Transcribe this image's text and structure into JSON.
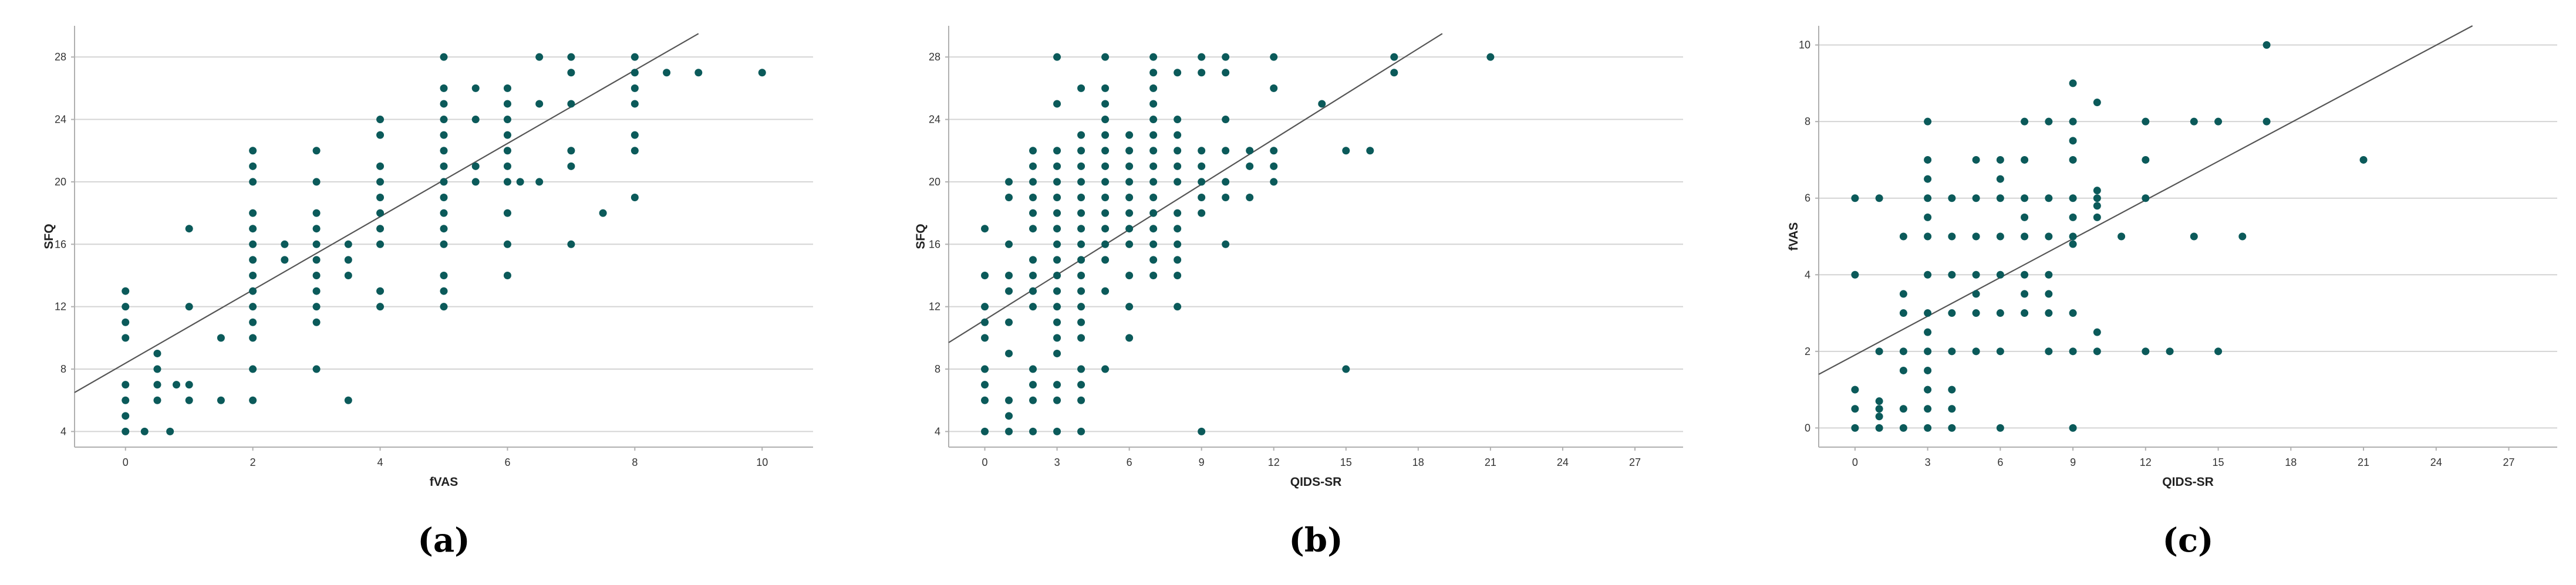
{
  "colors": {
    "point": "#0b5a5a",
    "grid": "#d4d4d4",
    "axis": "#b0b0b0",
    "fit": "#555555"
  },
  "chart_data": [
    {
      "type": "scatter",
      "panel_label": "(a)",
      "xlabel": "fVAS",
      "ylabel": "SFQ",
      "xlim": [
        -0.8,
        10.8
      ],
      "ylim": [
        3,
        30
      ],
      "xticks": [
        0,
        2,
        4,
        6,
        8,
        10
      ],
      "yticks": [
        4,
        8,
        12,
        16,
        20,
        24,
        28
      ],
      "grid": "horizontal",
      "fit_line": {
        "x1": -0.8,
        "y1": 6.5,
        "x2": 9.0,
        "y2": 29.5
      },
      "points": [
        [
          0,
          4
        ],
        [
          0,
          5
        ],
        [
          0,
          6
        ],
        [
          0,
          7
        ],
        [
          0,
          10
        ],
        [
          0,
          11
        ],
        [
          0,
          12
        ],
        [
          0,
          13
        ],
        [
          0.3,
          4
        ],
        [
          0.5,
          6
        ],
        [
          0.5,
          7
        ],
        [
          0.5,
          8
        ],
        [
          0.5,
          9
        ],
        [
          0.7,
          4
        ],
        [
          0.8,
          7
        ],
        [
          1,
          6
        ],
        [
          1,
          7
        ],
        [
          1,
          12
        ],
        [
          1,
          17
        ],
        [
          1.5,
          6
        ],
        [
          1.5,
          10
        ],
        [
          2,
          6
        ],
        [
          2,
          8
        ],
        [
          2,
          10
        ],
        [
          2,
          11
        ],
        [
          2,
          12
        ],
        [
          2,
          13
        ],
        [
          2,
          14
        ],
        [
          2,
          15
        ],
        [
          2,
          16
        ],
        [
          2,
          17
        ],
        [
          2,
          18
        ],
        [
          2,
          20
        ],
        [
          2,
          21
        ],
        [
          2,
          22
        ],
        [
          2.5,
          15
        ],
        [
          2.5,
          16
        ],
        [
          3,
          8
        ],
        [
          3,
          11
        ],
        [
          3,
          12
        ],
        [
          3,
          13
        ],
        [
          3,
          14
        ],
        [
          3,
          15
        ],
        [
          3,
          16
        ],
        [
          3,
          17
        ],
        [
          3,
          18
        ],
        [
          3,
          20
        ],
        [
          3,
          22
        ],
        [
          3.5,
          6
        ],
        [
          3.5,
          14
        ],
        [
          3.5,
          15
        ],
        [
          3.5,
          16
        ],
        [
          4,
          12
        ],
        [
          4,
          13
        ],
        [
          4,
          16
        ],
        [
          4,
          17
        ],
        [
          4,
          18
        ],
        [
          4,
          19
        ],
        [
          4,
          20
        ],
        [
          4,
          21
        ],
        [
          4,
          23
        ],
        [
          4,
          24
        ],
        [
          5,
          12
        ],
        [
          5,
          13
        ],
        [
          5,
          14
        ],
        [
          5,
          16
        ],
        [
          5,
          17
        ],
        [
          5,
          18
        ],
        [
          5,
          19
        ],
        [
          5,
          20
        ],
        [
          5,
          21
        ],
        [
          5,
          22
        ],
        [
          5,
          23
        ],
        [
          5,
          24
        ],
        [
          5,
          25
        ],
        [
          5,
          26
        ],
        [
          5,
          28
        ],
        [
          5.5,
          20
        ],
        [
          5.5,
          21
        ],
        [
          5.5,
          24
        ],
        [
          5.5,
          26
        ],
        [
          6,
          14
        ],
        [
          6,
          16
        ],
        [
          6,
          18
        ],
        [
          6,
          20
        ],
        [
          6,
          21
        ],
        [
          6,
          22
        ],
        [
          6,
          23
        ],
        [
          6,
          24
        ],
        [
          6,
          25
        ],
        [
          6,
          26
        ],
        [
          6.2,
          20
        ],
        [
          6.5,
          20
        ],
        [
          6.5,
          25
        ],
        [
          6.5,
          28
        ],
        [
          7,
          16
        ],
        [
          7,
          21
        ],
        [
          7,
          22
        ],
        [
          7,
          25
        ],
        [
          7,
          27
        ],
        [
          7,
          28
        ],
        [
          7.5,
          18
        ],
        [
          8,
          19
        ],
        [
          8,
          22
        ],
        [
          8,
          23
        ],
        [
          8,
          25
        ],
        [
          8,
          26
        ],
        [
          8,
          27
        ],
        [
          8,
          28
        ],
        [
          8.5,
          27
        ],
        [
          9,
          27
        ],
        [
          10,
          27
        ]
      ]
    },
    {
      "type": "scatter",
      "panel_label": "(b)",
      "xlabel": "QIDS-SR",
      "ylabel": "SFQ",
      "xlim": [
        -1.5,
        29
      ],
      "ylim": [
        3,
        30
      ],
      "xticks": [
        0,
        3,
        6,
        9,
        12,
        15,
        18,
        21,
        24,
        27
      ],
      "yticks": [
        4,
        8,
        12,
        16,
        20,
        24,
        28
      ],
      "grid": "horizontal",
      "fit_line": {
        "x1": -1.5,
        "y1": 9.7,
        "x2": 19,
        "y2": 29.5
      },
      "points": [
        [
          0,
          4
        ],
        [
          0,
          6
        ],
        [
          0,
          7
        ],
        [
          0,
          8
        ],
        [
          0,
          10
        ],
        [
          0,
          11
        ],
        [
          0,
          12
        ],
        [
          0,
          14
        ],
        [
          0,
          17
        ],
        [
          1,
          4
        ],
        [
          1,
          5
        ],
        [
          1,
          6
        ],
        [
          1,
          9
        ],
        [
          1,
          11
        ],
        [
          1,
          13
        ],
        [
          1,
          14
        ],
        [
          1,
          16
        ],
        [
          1,
          19
        ],
        [
          1,
          20
        ],
        [
          2,
          4
        ],
        [
          2,
          6
        ],
        [
          2,
          7
        ],
        [
          2,
          8
        ],
        [
          2,
          12
        ],
        [
          2,
          13
        ],
        [
          2,
          14
        ],
        [
          2,
          15
        ],
        [
          2,
          17
        ],
        [
          2,
          18
        ],
        [
          2,
          19
        ],
        [
          2,
          20
        ],
        [
          2,
          21
        ],
        [
          2,
          22
        ],
        [
          3,
          4
        ],
        [
          3,
          6
        ],
        [
          3,
          7
        ],
        [
          3,
          9
        ],
        [
          3,
          10
        ],
        [
          3,
          11
        ],
        [
          3,
          12
        ],
        [
          3,
          13
        ],
        [
          3,
          14
        ],
        [
          3,
          15
        ],
        [
          3,
          16
        ],
        [
          3,
          17
        ],
        [
          3,
          18
        ],
        [
          3,
          19
        ],
        [
          3,
          20
        ],
        [
          3,
          21
        ],
        [
          3,
          22
        ],
        [
          3,
          25
        ],
        [
          3,
          28
        ],
        [
          4,
          4
        ],
        [
          4,
          6
        ],
        [
          4,
          7
        ],
        [
          4,
          8
        ],
        [
          4,
          10
        ],
        [
          4,
          11
        ],
        [
          4,
          12
        ],
        [
          4,
          13
        ],
        [
          4,
          14
        ],
        [
          4,
          15
        ],
        [
          4,
          16
        ],
        [
          4,
          17
        ],
        [
          4,
          18
        ],
        [
          4,
          19
        ],
        [
          4,
          20
        ],
        [
          4,
          21
        ],
        [
          4,
          22
        ],
        [
          4,
          23
        ],
        [
          4,
          26
        ],
        [
          5,
          8
        ],
        [
          5,
          13
        ],
        [
          5,
          15
        ],
        [
          5,
          16
        ],
        [
          5,
          17
        ],
        [
          5,
          18
        ],
        [
          5,
          19
        ],
        [
          5,
          20
        ],
        [
          5,
          21
        ],
        [
          5,
          22
        ],
        [
          5,
          23
        ],
        [
          5,
          24
        ],
        [
          5,
          25
        ],
        [
          5,
          26
        ],
        [
          5,
          28
        ],
        [
          6,
          10
        ],
        [
          6,
          12
        ],
        [
          6,
          14
        ],
        [
          6,
          16
        ],
        [
          6,
          17
        ],
        [
          6,
          18
        ],
        [
          6,
          19
        ],
        [
          6,
          20
        ],
        [
          6,
          21
        ],
        [
          6,
          22
        ],
        [
          6,
          23
        ],
        [
          7,
          14
        ],
        [
          7,
          15
        ],
        [
          7,
          16
        ],
        [
          7,
          17
        ],
        [
          7,
          18
        ],
        [
          7,
          19
        ],
        [
          7,
          20
        ],
        [
          7,
          21
        ],
        [
          7,
          22
        ],
        [
          7,
          23
        ],
        [
          7,
          24
        ],
        [
          7,
          25
        ],
        [
          7,
          26
        ],
        [
          7,
          27
        ],
        [
          7,
          28
        ],
        [
          8,
          12
        ],
        [
          8,
          14
        ],
        [
          8,
          15
        ],
        [
          8,
          16
        ],
        [
          8,
          17
        ],
        [
          8,
          18
        ],
        [
          8,
          20
        ],
        [
          8,
          21
        ],
        [
          8,
          22
        ],
        [
          8,
          23
        ],
        [
          8,
          24
        ],
        [
          8,
          27
        ],
        [
          9,
          4
        ],
        [
          9,
          18
        ],
        [
          9,
          19
        ],
        [
          9,
          20
        ],
        [
          9,
          21
        ],
        [
          9,
          22
        ],
        [
          9,
          27
        ],
        [
          9,
          28
        ],
        [
          10,
          16
        ],
        [
          10,
          19
        ],
        [
          10,
          20
        ],
        [
          10,
          22
        ],
        [
          10,
          24
        ],
        [
          10,
          27
        ],
        [
          10,
          28
        ],
        [
          11,
          19
        ],
        [
          11,
          21
        ],
        [
          11,
          22
        ],
        [
          12,
          20
        ],
        [
          12,
          21
        ],
        [
          12,
          22
        ],
        [
          12,
          26
        ],
        [
          12,
          28
        ],
        [
          14,
          25
        ],
        [
          15,
          8
        ],
        [
          15,
          22
        ],
        [
          16,
          22
        ],
        [
          17,
          27
        ],
        [
          17,
          28
        ],
        [
          21,
          28
        ]
      ]
    },
    {
      "type": "scatter",
      "panel_label": "(c)",
      "xlabel": "QIDS-SR",
      "ylabel": "fVAS",
      "xlim": [
        -1.5,
        29
      ],
      "ylim": [
        -0.5,
        10.5
      ],
      "xticks": [
        0,
        3,
        6,
        9,
        12,
        15,
        18,
        21,
        24,
        27
      ],
      "yticks": [
        0,
        2,
        4,
        6,
        8,
        10
      ],
      "grid": "horizontal",
      "fit_line": {
        "x1": -1.5,
        "y1": 1.4,
        "x2": 25.5,
        "y2": 10.5
      },
      "points": [
        [
          0,
          0
        ],
        [
          0,
          0.5
        ],
        [
          0,
          1
        ],
        [
          0,
          4
        ],
        [
          0,
          6
        ],
        [
          1,
          0
        ],
        [
          1,
          0.3
        ],
        [
          1,
          0.5
        ],
        [
          1,
          0.7
        ],
        [
          1,
          2
        ],
        [
          1,
          6
        ],
        [
          2,
          0
        ],
        [
          2,
          0.5
        ],
        [
          2,
          1.5
        ],
        [
          2,
          2
        ],
        [
          2,
          3
        ],
        [
          2,
          3.5
        ],
        [
          2,
          5
        ],
        [
          3,
          0
        ],
        [
          3,
          0.5
        ],
        [
          3,
          1
        ],
        [
          3,
          1.5
        ],
        [
          3,
          2
        ],
        [
          3,
          2.5
        ],
        [
          3,
          3
        ],
        [
          3,
          4
        ],
        [
          3,
          5
        ],
        [
          3,
          5.5
        ],
        [
          3,
          6
        ],
        [
          3,
          6.5
        ],
        [
          3,
          7
        ],
        [
          3,
          8
        ],
        [
          4,
          0
        ],
        [
          4,
          0.5
        ],
        [
          4,
          1
        ],
        [
          4,
          2
        ],
        [
          4,
          3
        ],
        [
          4,
          4
        ],
        [
          4,
          5
        ],
        [
          4,
          6
        ],
        [
          5,
          2
        ],
        [
          5,
          3
        ],
        [
          5,
          3.5
        ],
        [
          5,
          4
        ],
        [
          5,
          5
        ],
        [
          5,
          6
        ],
        [
          5,
          7
        ],
        [
          6,
          0
        ],
        [
          6,
          2
        ],
        [
          6,
          3
        ],
        [
          6,
          4
        ],
        [
          6,
          5
        ],
        [
          6,
          6
        ],
        [
          6,
          6.5
        ],
        [
          6,
          7
        ],
        [
          7,
          3
        ],
        [
          7,
          3.5
        ],
        [
          7,
          4
        ],
        [
          7,
          5
        ],
        [
          7,
          5.5
        ],
        [
          7,
          6
        ],
        [
          7,
          7
        ],
        [
          7,
          8
        ],
        [
          8,
          2
        ],
        [
          8,
          3
        ],
        [
          8,
          3.5
        ],
        [
          8,
          4
        ],
        [
          8,
          5
        ],
        [
          8,
          6
        ],
        [
          8,
          8
        ],
        [
          9,
          0
        ],
        [
          9,
          2
        ],
        [
          9,
          3
        ],
        [
          9,
          4.8
        ],
        [
          9,
          5
        ],
        [
          9,
          5.5
        ],
        [
          9,
          6
        ],
        [
          9,
          7
        ],
        [
          9,
          7.5
        ],
        [
          9,
          8
        ],
        [
          9,
          9
        ],
        [
          10,
          2
        ],
        [
          10,
          2.5
        ],
        [
          10,
          5.5
        ],
        [
          10,
          5.8
        ],
        [
          10,
          6
        ],
        [
          10,
          6.2
        ],
        [
          10,
          8.5
        ],
        [
          11,
          5
        ],
        [
          12,
          2
        ],
        [
          12,
          6
        ],
        [
          12,
          7
        ],
        [
          12,
          8
        ],
        [
          13,
          2
        ],
        [
          14,
          5
        ],
        [
          14,
          8
        ],
        [
          15,
          2
        ],
        [
          15,
          8
        ],
        [
          16,
          5
        ],
        [
          17,
          8
        ],
        [
          17,
          10
        ],
        [
          21,
          7
        ]
      ]
    }
  ]
}
